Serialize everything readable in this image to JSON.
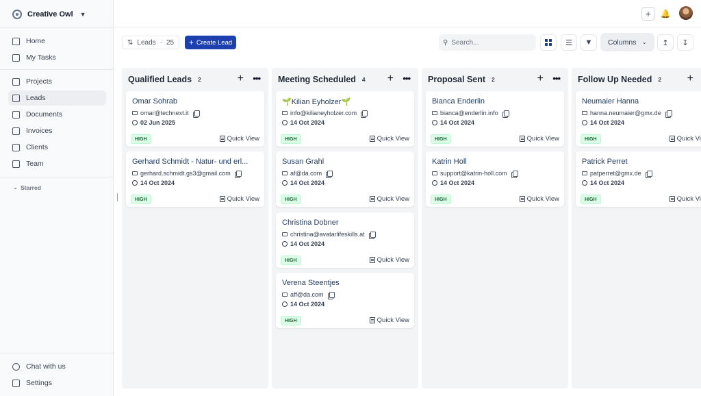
{
  "workspace": {
    "name": "Creative Owl"
  },
  "nav": {
    "primary": [
      {
        "label": "Home",
        "icon": "home-icon"
      },
      {
        "label": "My Tasks",
        "icon": "clipboard-icon"
      }
    ],
    "secondary": [
      {
        "label": "Projects",
        "icon": "projects-icon"
      },
      {
        "label": "Leads",
        "icon": "leads-icon",
        "active": true
      },
      {
        "label": "Documents",
        "icon": "document-icon"
      },
      {
        "label": "Invoices",
        "icon": "invoice-icon"
      },
      {
        "label": "Clients",
        "icon": "clients-icon"
      },
      {
        "label": "Team",
        "icon": "team-icon"
      }
    ],
    "starred_label": "Starred",
    "footer": [
      {
        "label": "Chat with us",
        "icon": "chat-icon"
      },
      {
        "label": "Settings",
        "icon": "settings-icon"
      }
    ]
  },
  "toolbar": {
    "leads_label": "Leads",
    "leads_separator": "·",
    "leads_count": "25",
    "create_label": "Create Lead",
    "search_placeholder": "Search...",
    "columns_label": "Columns"
  },
  "colors": {
    "primary": "#1e40af",
    "badge_bg": "#dcfce7",
    "badge_text": "#166534"
  },
  "columns": [
    {
      "title": "Qualified Leads",
      "count": "2",
      "cards": [
        {
          "name": "Omar Sohrab",
          "email": "omar@technext.it",
          "date": "02 Jun 2025",
          "priority": "HIGH",
          "action": "Quick View"
        },
        {
          "name": "Gerhard Schmidt - Natur- und erl...",
          "email": "gerhard.schmidt.gs3@gmail.com",
          "date": "14 Oct 2024",
          "priority": "HIGH",
          "action": "Quick View"
        }
      ]
    },
    {
      "title": "Meeting Scheduled",
      "count": "4",
      "cards": [
        {
          "name": "🌱Kilian Eyholzer🌱",
          "email": "info@kilianeyholzer.com",
          "date": "14 Oct 2024",
          "priority": "HIGH",
          "action": "Quick View"
        },
        {
          "name": "Susan Grahl",
          "email": "af@da.com",
          "date": "14 Oct 2024",
          "priority": "HIGH",
          "action": "Quick View"
        },
        {
          "name": "Christina Dobner",
          "email": "christina@avatarlifeskills.at",
          "date": "14 Oct 2024",
          "priority": "HIGH",
          "action": "Quick View"
        },
        {
          "name": "Verena Steentjes",
          "email": "aff@da.com",
          "date": "14 Oct 2024",
          "priority": "HIGH",
          "action": "Quick View"
        }
      ]
    },
    {
      "title": "Proposal Sent",
      "count": "2",
      "cards": [
        {
          "name": "Bianca Enderlin",
          "email": "bianca@enderlin.info",
          "date": "14 Oct 2024",
          "priority": "HIGH",
          "action": "Quick View"
        },
        {
          "name": "Katrin Holl",
          "email": "support@katrin-holl.com",
          "date": "14 Oct 2024",
          "priority": "HIGH",
          "action": "Quick View"
        }
      ]
    },
    {
      "title": "Follow Up Needed",
      "count": "2",
      "cards": [
        {
          "name": "Neumaier Hanna",
          "email": "hanna.neumaier@gmx.de",
          "date": "14 Oct 2024",
          "priority": "HIGH",
          "action": "Quick View"
        },
        {
          "name": "Patrick Perret",
          "email": "patperret@gmx.de",
          "date": "14 Oct 2024",
          "priority": "HIGH",
          "action": "Quick View"
        }
      ]
    }
  ]
}
